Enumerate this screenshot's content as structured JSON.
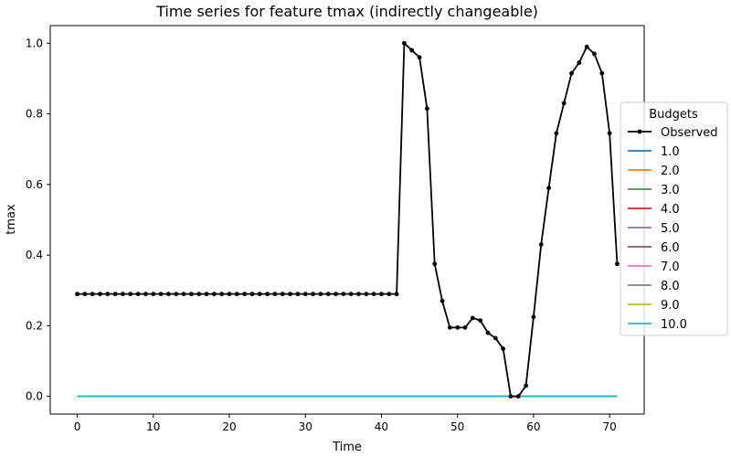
{
  "chart_data": {
    "type": "line",
    "title": "Time series for feature tmax (indirectly changeable)",
    "xlabel": "Time",
    "ylabel": "tmax",
    "xlim": [
      -3.55,
      74.55
    ],
    "ylim": [
      -0.05,
      1.05
    ],
    "x_ticks": [
      0,
      10,
      20,
      30,
      40,
      50,
      60,
      70
    ],
    "y_ticks": [
      0.0,
      0.2,
      0.4,
      0.6,
      0.8,
      1.0
    ],
    "x_tick_labels": [
      "0",
      "10",
      "20",
      "30",
      "40",
      "50",
      "60",
      "70"
    ],
    "y_tick_labels": [
      "0.0",
      "0.2",
      "0.4",
      "0.6",
      "0.8",
      "1.0"
    ],
    "legend": {
      "title": "Budgets",
      "position": "center-right"
    },
    "observed": {
      "name": "Observed",
      "color": "#000000",
      "x": [
        0,
        1,
        2,
        3,
        4,
        5,
        6,
        7,
        8,
        9,
        10,
        11,
        12,
        13,
        14,
        15,
        16,
        17,
        18,
        19,
        20,
        21,
        22,
        23,
        24,
        25,
        26,
        27,
        28,
        29,
        30,
        31,
        32,
        33,
        34,
        35,
        36,
        37,
        38,
        39,
        40,
        41,
        42,
        43,
        44,
        45,
        46,
        47,
        48,
        49,
        50,
        51,
        52,
        53,
        54,
        55,
        56,
        57,
        58,
        59,
        60,
        61,
        62,
        63,
        64,
        65,
        66,
        67,
        68,
        69,
        70,
        71
      ],
      "y": [
        0.29,
        0.29,
        0.29,
        0.29,
        0.29,
        0.29,
        0.29,
        0.29,
        0.29,
        0.29,
        0.29,
        0.29,
        0.29,
        0.29,
        0.29,
        0.29,
        0.29,
        0.29,
        0.29,
        0.29,
        0.29,
        0.29,
        0.29,
        0.29,
        0.29,
        0.29,
        0.29,
        0.29,
        0.29,
        0.29,
        0.29,
        0.29,
        0.29,
        0.29,
        0.29,
        0.29,
        0.29,
        0.29,
        0.29,
        0.29,
        0.29,
        0.29,
        0.29,
        1.0,
        0.98,
        0.96,
        0.815,
        0.375,
        0.27,
        0.195,
        0.195,
        0.195,
        0.222,
        0.215,
        0.18,
        0.165,
        0.135,
        0.0,
        0.0,
        0.03,
        0.225,
        0.43,
        0.59,
        0.745,
        0.83,
        0.915,
        0.945,
        0.99,
        0.97,
        0.915,
        0.745,
        0.375
      ]
    },
    "series": [
      {
        "name": "1.0",
        "color": "#1f77b4",
        "x_start": 0,
        "x_end": 71,
        "value": 0.0
      },
      {
        "name": "2.0",
        "color": "#ff7f0e",
        "x_start": 0,
        "x_end": 71,
        "value": 0.0
      },
      {
        "name": "3.0",
        "color": "#2ca02c",
        "x_start": 0,
        "x_end": 71,
        "value": 0.0
      },
      {
        "name": "4.0",
        "color": "#d62728",
        "x_start": 0,
        "x_end": 71,
        "value": 0.0
      },
      {
        "name": "5.0",
        "color": "#9467bd",
        "x_start": 0,
        "x_end": 71,
        "value": 0.0
      },
      {
        "name": "6.0",
        "color": "#8c564b",
        "x_start": 0,
        "x_end": 71,
        "value": 0.0
      },
      {
        "name": "7.0",
        "color": "#e377c2",
        "x_start": 0,
        "x_end": 71,
        "value": 0.0
      },
      {
        "name": "8.0",
        "color": "#7f7f7f",
        "x_start": 0,
        "x_end": 71,
        "value": 0.0
      },
      {
        "name": "9.0",
        "color": "#bcbd22",
        "x_start": 0,
        "x_end": 71,
        "value": 0.0
      },
      {
        "name": "10.0",
        "color": "#17becf",
        "x_start": 0,
        "x_end": 71,
        "value": 0.0
      }
    ],
    "grid": false
  }
}
